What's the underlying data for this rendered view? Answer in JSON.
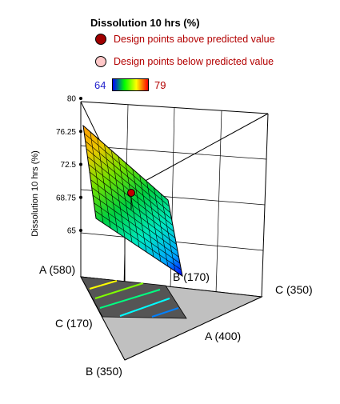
{
  "legend": {
    "title": "Dissolution 10 hrs (%)",
    "above_label": "Design points above predicted value",
    "below_label": "Design points below predicted value",
    "above_color": "#c00000",
    "below_color": "#ffc8c8",
    "scale_min": "64",
    "scale_max": "79"
  },
  "chart_data": {
    "type": "mixture-surface-3d",
    "zlabel": "Dissolution 10 hrs (%)",
    "z_ticks": [
      "65",
      "68.75",
      "72.5",
      "76.25",
      "80"
    ],
    "zlim": [
      65,
      80
    ],
    "color_range": [
      64,
      79
    ],
    "vertex_labels": {
      "A_high": "A (580)",
      "B_high": "B (170)",
      "C_high": "C (350)",
      "A_low": "A (400)",
      "B_low": "B (350)",
      "C_low": "C (170)"
    },
    "surface_corners": [
      {
        "at": "A (580)",
        "response": 77.3
      },
      {
        "at": "B (170)",
        "response": 63.8
      },
      {
        "at": "C (170) side",
        "response": 69.5
      },
      {
        "at": "C (350) side",
        "response": 71.0
      }
    ],
    "design_points_above": [
      {
        "response": 71.5
      }
    ]
  }
}
